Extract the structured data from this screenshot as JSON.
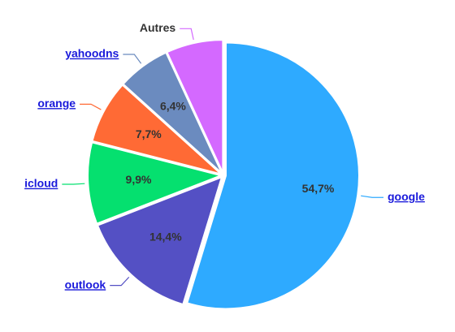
{
  "chart_data": {
    "type": "pie",
    "categories": [
      "google",
      "outlook",
      "icloud",
      "orange",
      "yahoodns",
      "Autres"
    ],
    "values": [
      54.7,
      14.4,
      9.9,
      7.7,
      6.4,
      6.9
    ],
    "value_labels": [
      "54,7%",
      "14,4%",
      "9,9%",
      "7,7%",
      "6,4%",
      null
    ],
    "colors": [
      "#2eaaff",
      "#5450c4",
      "#05e06f",
      "#ff6a35",
      "#6b8bbf",
      "#d469ff"
    ]
  }
}
